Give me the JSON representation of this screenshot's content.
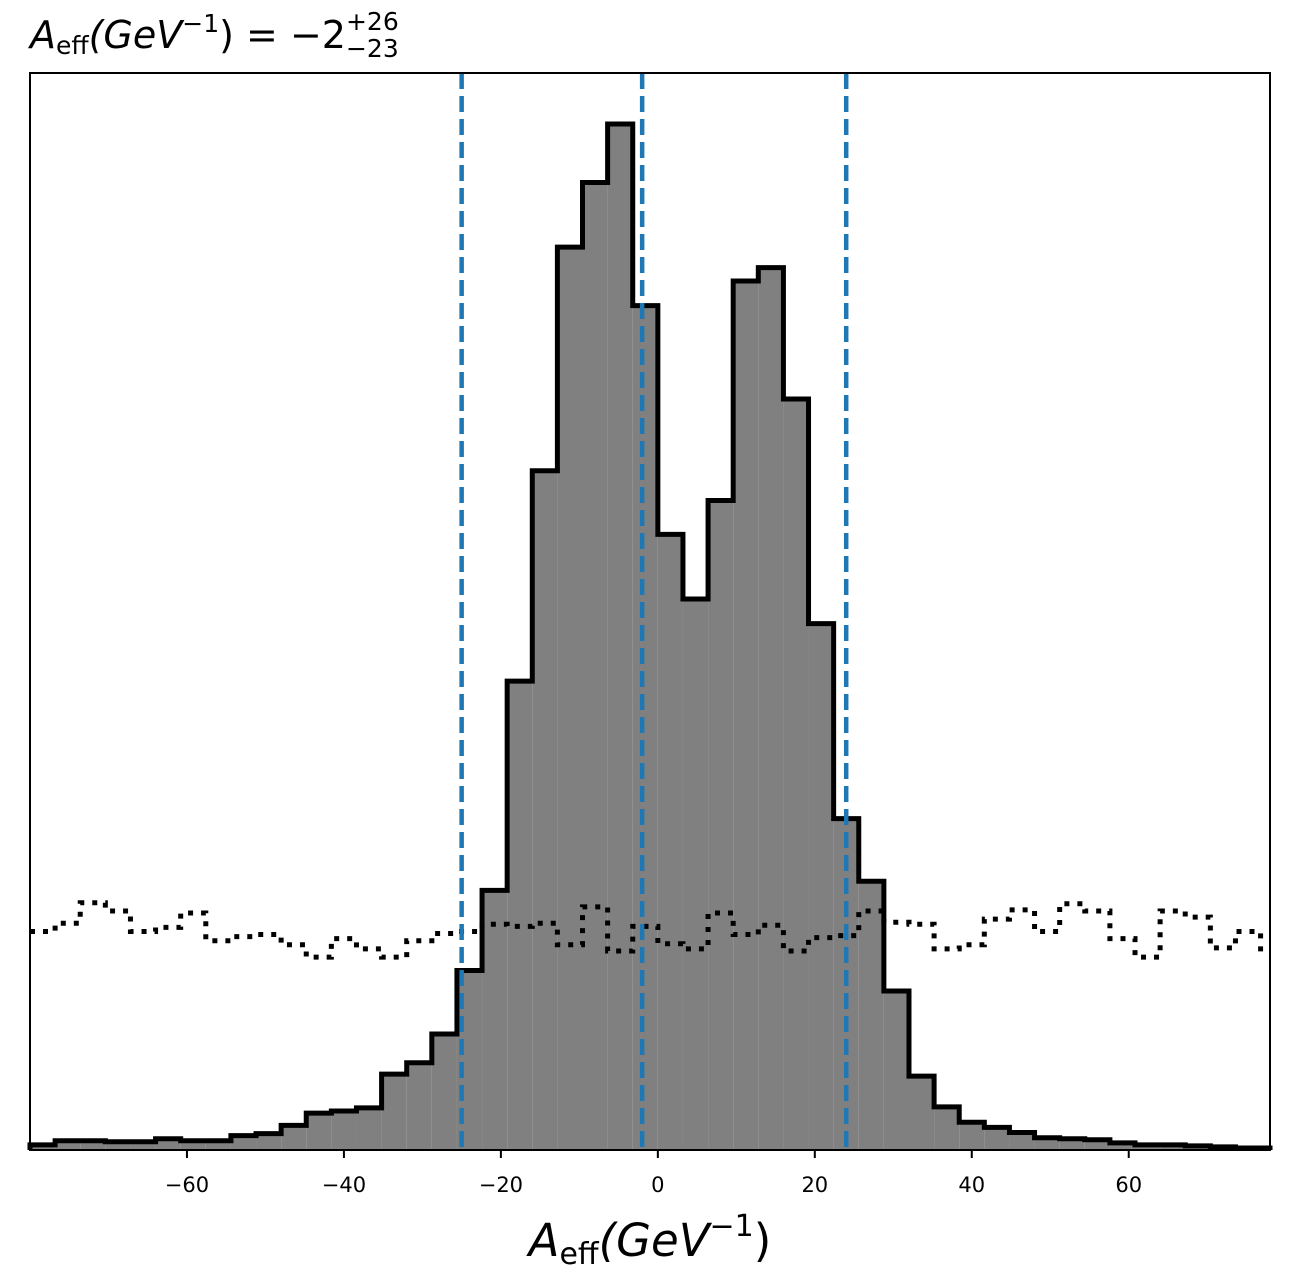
{
  "chart_data": {
    "type": "histogram",
    "title": {
      "symbol": "A",
      "symbol_subscript": "eff",
      "unit_open": "(GeV",
      "unit_exponent": "−1",
      "unit_close": ")",
      "equals": " = ",
      "value": "−2",
      "upper_error": "+26",
      "lower_error": "−23"
    },
    "xlabel": {
      "symbol": "A",
      "symbol_subscript": "eff",
      "unit_open": "(GeV",
      "unit_exponent": "−1",
      "unit_close": ")"
    },
    "xlim": [
      -80,
      78
    ],
    "xticks": [
      -60,
      -40,
      -20,
      0,
      20,
      40,
      60
    ],
    "xtick_labels": [
      "−60",
      "−40",
      "−20",
      "0",
      "20",
      "40",
      "60"
    ],
    "ylim": [
      0,
      1.0
    ],
    "yticks_shown": false,
    "bin_edges": [
      -80,
      -76.8,
      -73.6,
      -70.4,
      -67.2,
      -64,
      -60.8,
      -57.6,
      -54.4,
      -51.2,
      -48,
      -44.8,
      -41.6,
      -38.4,
      -35.2,
      -32,
      -28.8,
      -25.6,
      -22.4,
      -19.2,
      -16,
      -12.8,
      -9.6,
      -6.4,
      -3.2,
      0,
      3.2,
      6.4,
      9.6,
      12.8,
      16,
      19.2,
      22.4,
      25.6,
      28.8,
      32,
      35.2,
      38.4,
      41.6,
      44.8,
      48,
      51.2,
      54.4,
      57.6,
      60.8,
      64,
      67.2,
      70.4,
      73.6,
      76.8,
      78
    ],
    "series": [
      {
        "style": "filled-step",
        "fill": "#808080",
        "edge": "#000000",
        "values": [
          0.005,
          0.009,
          0.009,
          0.008,
          0.008,
          0.011,
          0.009,
          0.009,
          0.014,
          0.016,
          0.024,
          0.036,
          0.038,
          0.041,
          0.074,
          0.085,
          0.113,
          0.175,
          0.253,
          0.457,
          0.662,
          0.88,
          0.943,
          1.0,
          0.823,
          0.6,
          0.537,
          0.633,
          0.847,
          0.86,
          0.732,
          0.513,
          0.323,
          0.262,
          0.155,
          0.072,
          0.042,
          0.027,
          0.022,
          0.017,
          0.012,
          0.011,
          0.01,
          0.007,
          0.005,
          0.005,
          0.004,
          0.003,
          0.002,
          0.002
        ]
      },
      {
        "style": "dotted-step",
        "edge": "#000000",
        "values": [
          0.213,
          0.221,
          0.241,
          0.233,
          0.213,
          0.217,
          0.231,
          0.204,
          0.208,
          0.21,
          0.2,
          0.188,
          0.206,
          0.196,
          0.188,
          0.204,
          0.211,
          0.213,
          0.22,
          0.218,
          0.221,
          0.2,
          0.237,
          0.194,
          0.218,
          0.201,
          0.196,
          0.231,
          0.21,
          0.219,
          0.194,
          0.207,
          0.209,
          0.233,
          0.222,
          0.22,
          0.196,
          0.2,
          0.225,
          0.234,
          0.213,
          0.24,
          0.233,
          0.206,
          0.188,
          0.233,
          0.227,
          0.197,
          0.213,
          0.196
        ]
      }
    ],
    "vlines": {
      "color": "#1f77b4",
      "style": "dashed",
      "x": [
        -25,
        -2,
        24
      ]
    },
    "grid": false,
    "legend": "none"
  }
}
